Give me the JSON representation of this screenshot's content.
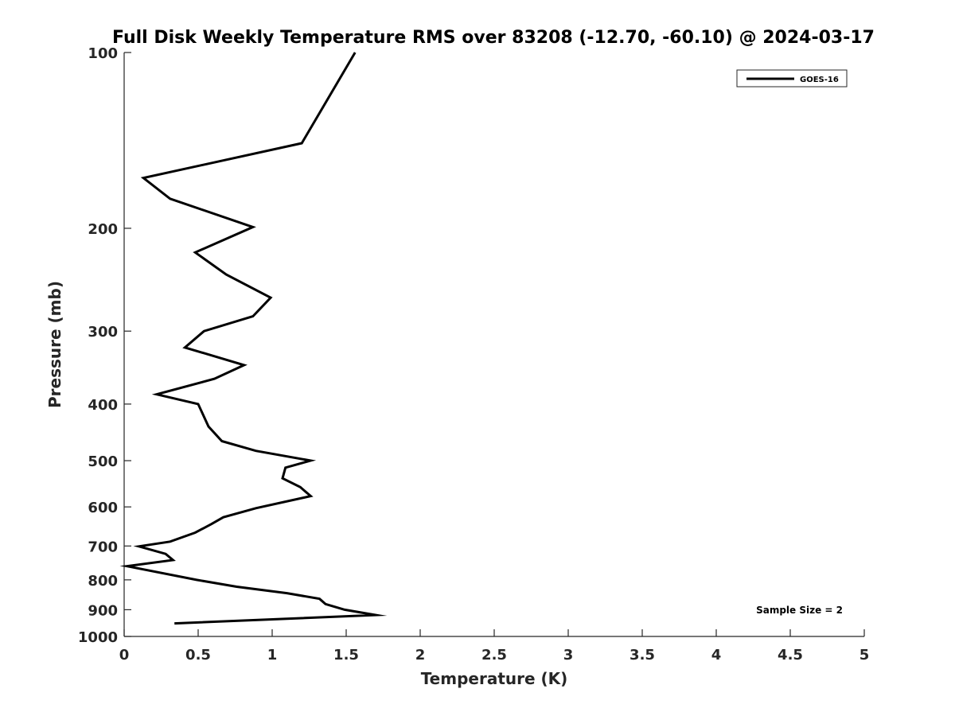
{
  "chart_data": {
    "type": "line",
    "title": "Full Disk Weekly Temperature RMS over 83208 (-12.70, -60.10) @ 2024-03-17",
    "xlabel": "Temperature (K)",
    "ylabel": "Pressure (mb)",
    "xlim": [
      0,
      5
    ],
    "ylim": [
      100,
      1000
    ],
    "y_scale": "log",
    "y_reversed": true,
    "grid": false,
    "legend_position": "top-right",
    "x_ticks": [
      "0",
      "0.5",
      "1",
      "1.5",
      "2",
      "2.5",
      "3",
      "3.5",
      "4",
      "4.5",
      "5"
    ],
    "y_ticks": [
      "100",
      "200",
      "300",
      "400",
      "500",
      "600",
      "700",
      "800",
      "900",
      "1000"
    ],
    "annotation": "Sample Size = 2",
    "series": [
      {
        "name": "GOES-16",
        "color": "#000000",
        "points": [
          {
            "x": 1.56,
            "p": 100
          },
          {
            "x": 1.2,
            "p": 143
          },
          {
            "x": 0.13,
            "p": 164
          },
          {
            "x": 0.31,
            "p": 178
          },
          {
            "x": 0.87,
            "p": 199
          },
          {
            "x": 0.48,
            "p": 220
          },
          {
            "x": 0.69,
            "p": 240
          },
          {
            "x": 0.99,
            "p": 263
          },
          {
            "x": 0.87,
            "p": 283
          },
          {
            "x": 0.54,
            "p": 300
          },
          {
            "x": 0.41,
            "p": 320
          },
          {
            "x": 0.81,
            "p": 343
          },
          {
            "x": 0.61,
            "p": 362
          },
          {
            "x": 0.22,
            "p": 385
          },
          {
            "x": 0.5,
            "p": 400
          },
          {
            "x": 0.57,
            "p": 437
          },
          {
            "x": 0.66,
            "p": 463
          },
          {
            "x": 0.89,
            "p": 481
          },
          {
            "x": 1.26,
            "p": 500
          },
          {
            "x": 1.09,
            "p": 514
          },
          {
            "x": 1.07,
            "p": 536
          },
          {
            "x": 1.19,
            "p": 555
          },
          {
            "x": 1.26,
            "p": 575
          },
          {
            "x": 0.89,
            "p": 603
          },
          {
            "x": 0.67,
            "p": 625
          },
          {
            "x": 0.59,
            "p": 642
          },
          {
            "x": 0.48,
            "p": 664
          },
          {
            "x": 0.31,
            "p": 688
          },
          {
            "x": 0.1,
            "p": 701
          },
          {
            "x": 0.28,
            "p": 722
          },
          {
            "x": 0.33,
            "p": 740
          },
          {
            "x": 0.02,
            "p": 758
          },
          {
            "x": 0.49,
            "p": 800
          },
          {
            "x": 0.76,
            "p": 822
          },
          {
            "x": 1.1,
            "p": 843
          },
          {
            "x": 1.32,
            "p": 862
          },
          {
            "x": 1.36,
            "p": 880
          },
          {
            "x": 1.49,
            "p": 900
          },
          {
            "x": 1.7,
            "p": 919
          },
          {
            "x": 0.34,
            "p": 950
          }
        ]
      }
    ]
  }
}
